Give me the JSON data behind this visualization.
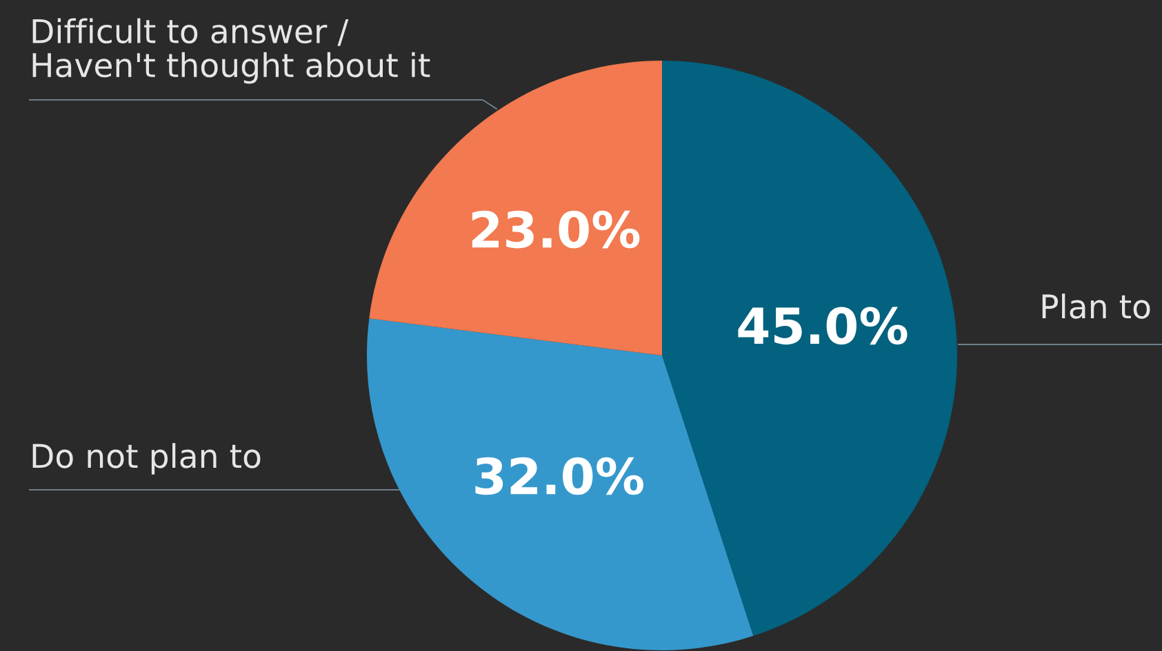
{
  "chart_data": {
    "type": "pie",
    "categories": [
      "Plan to",
      "Do not plan to",
      "Difficult to answer /\nHaven't thought about it"
    ],
    "values": [
      45.0,
      32.0,
      23.0
    ],
    "colors": [
      "#02627f",
      "#3598cc",
      "#f27950"
    ],
    "value_labels": [
      "45.0%",
      "32.0%",
      "23.0%"
    ],
    "legend": false
  }
}
